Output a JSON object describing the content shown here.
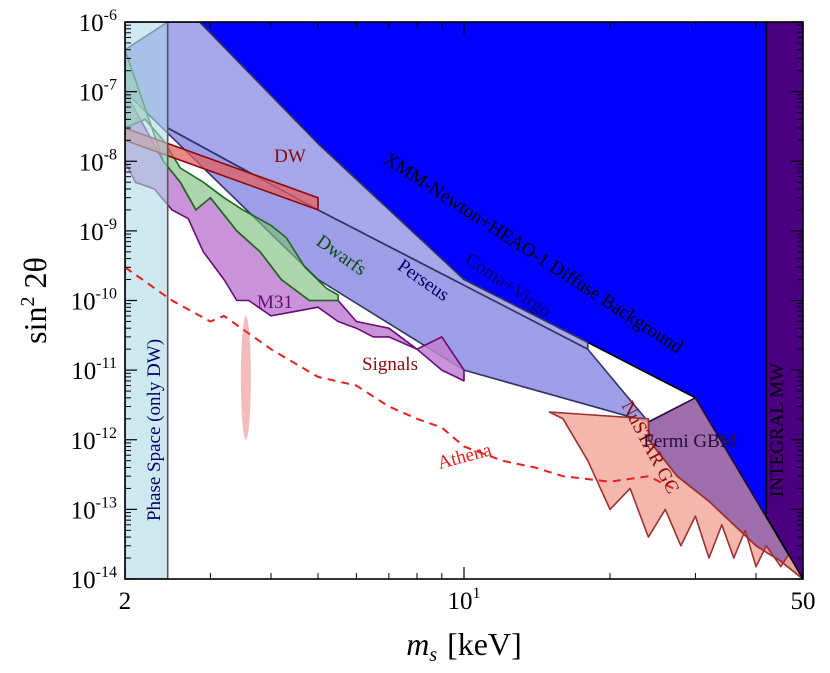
{
  "chart_data": {
    "type": "area",
    "title": "",
    "xlabel_symbol": "m",
    "xlabel_sub": "s",
    "xlabel_unit": "[keV]",
    "ylabel_text": "sin",
    "ylabel_sup": "2",
    "ylabel_rest": "2θ",
    "x_scale": "log",
    "y_scale": "log",
    "xlim": [
      2,
      50
    ],
    "ylim": [
      1e-14,
      1e-06
    ],
    "x_ticks": [
      {
        "value": 2,
        "base": "2",
        "sup": ""
      },
      {
        "value": 10,
        "base": "10",
        "sup": "1"
      },
      {
        "value": 50,
        "base": "50",
        "sup": ""
      }
    ],
    "y_ticks": [
      {
        "value": 1e-06,
        "base": "10",
        "sup": "-6"
      },
      {
        "value": 1e-07,
        "base": "10",
        "sup": "-7"
      },
      {
        "value": 1e-08,
        "base": "10",
        "sup": "-8"
      },
      {
        "value": 1e-09,
        "base": "10",
        "sup": "-9"
      },
      {
        "value": 1e-10,
        "base": "10",
        "sup": "-10"
      },
      {
        "value": 1e-11,
        "base": "10",
        "sup": "-11"
      },
      {
        "value": 1e-12,
        "base": "10",
        "sup": "-12"
      },
      {
        "value": 1e-13,
        "base": "10",
        "sup": "-13"
      },
      {
        "value": 1e-14,
        "base": "10",
        "sup": "-14"
      }
    ],
    "regions": [
      {
        "name": "XMM-Newton+HEAO-1 Diffuse Background",
        "fill": "#0000ff",
        "opacity": 1.0,
        "stroke": "#000000",
        "points": [
          [
            2.85,
            1e-06
          ],
          [
            42,
            1e-06
          ],
          [
            42,
            8e-14
          ],
          [
            50,
            1e-14
          ],
          [
            30,
            4e-12
          ],
          [
            18,
            2.5e-11
          ],
          [
            10,
            2e-10
          ],
          [
            5,
            1.8e-08
          ],
          [
            2.85,
            1e-06
          ]
        ]
      },
      {
        "name": "Coma+Virgo",
        "fill": "#6a6adc",
        "opacity": 0.6,
        "stroke": "#333366",
        "points": [
          [
            2.45,
            1e-06
          ],
          [
            2.85,
            1e-06
          ],
          [
            5,
            1.8e-08
          ],
          [
            10,
            2e-10
          ],
          [
            18,
            2.5e-11
          ],
          [
            18,
            2e-11
          ],
          [
            5,
            2e-09
          ],
          [
            2.45,
            3e-08
          ]
        ]
      },
      {
        "name": "Perseus",
        "fill": "#6a6adc",
        "opacity": 0.65,
        "stroke": "#333366",
        "points": [
          [
            2,
            4e-07
          ],
          [
            2.45,
            1e-06
          ],
          [
            2.45,
            3e-08
          ],
          [
            5,
            2e-09
          ],
          [
            18,
            2e-11
          ],
          [
            24,
            1.8e-12
          ],
          [
            10,
            1e-11
          ],
          [
            5,
            2e-10
          ],
          [
            2,
            1e-07
          ]
        ]
      },
      {
        "name": "Fermi GBM",
        "fill": "#7c3d8f",
        "opacity": 0.75,
        "stroke": "#2a0a3a",
        "points": [
          [
            24,
            1.8e-12
          ],
          [
            30,
            4e-12
          ],
          [
            50,
            1e-14
          ],
          [
            45,
            1.8e-14
          ],
          [
            40,
            3e-14
          ],
          [
            36,
            6e-14
          ],
          [
            32,
            1.3e-13
          ],
          [
            27.5,
            3e-13
          ],
          [
            24,
            1e-12
          ]
        ]
      },
      {
        "name": "NuSTAR GC",
        "fill": "#f2aaa0",
        "opacity": 0.85,
        "stroke": "#a03030",
        "points": [
          [
            15,
            2.5e-12
          ],
          [
            24,
            2e-12
          ],
          [
            24,
            1e-12
          ],
          [
            27.5,
            3e-13
          ],
          [
            32,
            1.3e-13
          ],
          [
            36,
            6e-14
          ],
          [
            40,
            3e-14
          ],
          [
            45,
            1.8e-14
          ],
          [
            50,
            1e-14
          ],
          [
            48,
            3e-14
          ],
          [
            45,
            1.5e-14
          ],
          [
            42,
            3e-14
          ],
          [
            40,
            1.5e-14
          ],
          [
            38,
            5e-14
          ],
          [
            36,
            2e-14
          ],
          [
            34,
            6e-14
          ],
          [
            32,
            2e-14
          ],
          [
            30,
            8e-14
          ],
          [
            28,
            3e-14
          ],
          [
            26,
            1e-13
          ],
          [
            24,
            4e-14
          ],
          [
            22,
            2e-13
          ],
          [
            20,
            1e-13
          ],
          [
            18,
            5e-13
          ],
          [
            16,
            2e-12
          ],
          [
            15,
            2.5e-12
          ]
        ]
      },
      {
        "name": "M31",
        "fill": "#c080d0",
        "opacity": 0.85,
        "stroke": "#6a0a7a",
        "points": [
          [
            2,
            1e-07
          ],
          [
            2.4,
            1e-08
          ],
          [
            2.6,
            5e-09
          ],
          [
            2.8,
            2e-09
          ],
          [
            3,
            3e-09
          ],
          [
            3.4,
            1e-09
          ],
          [
            3.8,
            5e-10
          ],
          [
            4.2,
            2e-10
          ],
          [
            4.8,
            1e-10
          ],
          [
            5.5,
            1e-10
          ],
          [
            6,
            5e-11
          ],
          [
            7,
            4e-11
          ],
          [
            8,
            2e-11
          ],
          [
            9,
            3e-11
          ],
          [
            10,
            1e-11
          ],
          [
            10,
            7e-12
          ],
          [
            9,
            1e-11
          ],
          [
            8,
            2e-11
          ],
          [
            7,
            3e-11
          ],
          [
            6.5,
            3e-11
          ],
          [
            6,
            4e-11
          ],
          [
            5.5,
            5e-11
          ],
          [
            5,
            8e-11
          ],
          [
            4.5,
            7e-11
          ],
          [
            4,
            6e-11
          ],
          [
            3.6,
            1e-10
          ],
          [
            3.4,
            1e-10
          ],
          [
            3.2,
            2e-10
          ],
          [
            2.9,
            5e-10
          ],
          [
            2.7,
            1.5e-09
          ],
          [
            2.5,
            2e-09
          ],
          [
            2.3,
            4e-09
          ],
          [
            2.1,
            5e-09
          ],
          [
            2,
            1e-08
          ]
        ]
      },
      {
        "name": "Dwarfs",
        "fill": "#7fbf7f",
        "opacity": 0.65,
        "stroke": "#1a6a1a",
        "points": [
          [
            2,
            4e-07
          ],
          [
            2.4,
            1e-08
          ],
          [
            2.6,
            5e-09
          ],
          [
            2.8,
            2e-09
          ],
          [
            3,
            3e-09
          ],
          [
            3.4,
            1e-09
          ],
          [
            3.8,
            5e-10
          ],
          [
            4.2,
            2e-10
          ],
          [
            4.8,
            1e-10
          ],
          [
            5.5,
            1e-10
          ],
          [
            5.5,
            1.2e-10
          ],
          [
            5.2,
            1.5e-10
          ],
          [
            4.7,
            3e-10
          ],
          [
            4.3,
            8e-10
          ],
          [
            4.0,
            1.2e-09
          ],
          [
            3.5,
            2e-09
          ],
          [
            3.2,
            3e-09
          ],
          [
            2.9,
            5e-09
          ],
          [
            2.6,
            8e-09
          ],
          [
            2.4,
            2e-08
          ],
          [
            2.2,
            4e-08
          ],
          [
            2,
            3e-08
          ]
        ]
      },
      {
        "name": "DW",
        "fill": "#e06060",
        "opacity": 0.75,
        "stroke": "#8a0a0a",
        "points": [
          [
            2,
            3e-08
          ],
          [
            5,
            3e-09
          ],
          [
            5,
            2e-09
          ],
          [
            2,
            2e-08
          ]
        ]
      },
      {
        "name": "Phase Space (only DW)",
        "fill": "#add8e6",
        "opacity": 0.6,
        "stroke": "#555555",
        "points": [
          [
            2,
            1e-14
          ],
          [
            2.45,
            1e-14
          ],
          [
            2.45,
            1e-06
          ],
          [
            2,
            1e-06
          ]
        ]
      },
      {
        "name": "INTEGRAL MW",
        "fill": "#4b0082",
        "opacity": 1.0,
        "stroke": "#000000",
        "points": [
          [
            42,
            1e-06
          ],
          [
            50,
            1e-06
          ],
          [
            50,
            1e-14
          ],
          [
            42,
            8e-14
          ]
        ]
      }
    ],
    "lines": [
      {
        "name": "Athena",
        "color": "#e62020",
        "dash": "8,6",
        "points": [
          [
            2,
            3e-10
          ],
          [
            2.5,
            1e-10
          ],
          [
            3,
            5e-11
          ],
          [
            3.2,
            6e-11
          ],
          [
            4,
            2e-11
          ],
          [
            5,
            8e-12
          ],
          [
            6,
            6e-12
          ],
          [
            7,
            3e-12
          ],
          [
            8,
            2e-12
          ],
          [
            9,
            1.5e-12
          ],
          [
            10,
            8e-13
          ],
          [
            12,
            5e-13
          ],
          [
            14,
            4e-13
          ],
          [
            16,
            3e-13
          ],
          [
            20,
            2.5e-13
          ],
          [
            24,
            3e-13
          ],
          [
            27,
            2e-13
          ]
        ]
      }
    ],
    "signals": [
      {
        "x": 3.55,
        "y_low": 1e-12,
        "y_high": 6e-11,
        "color": "#e04040",
        "name": "Signals"
      }
    ],
    "labels": [
      {
        "text": "XMM-Newton+HEAO-1 Diffuse Background",
        "color": "#000000",
        "rotate": 33.0
      },
      {
        "text": "INTEGRAL MW",
        "color": "#000000",
        "rotate": -90
      },
      {
        "text": "Coma+Virgo",
        "color": "#000066",
        "rotate": 34.0
      },
      {
        "text": "Perseus",
        "color": "#000066",
        "rotate": 35.0
      },
      {
        "text": "Dwarfs",
        "color": "#0a4a0a",
        "rotate": 35.0
      },
      {
        "text": "M31",
        "color": "#6a0a7a",
        "rotate": 0
      },
      {
        "text": "DW",
        "color": "#8a0a0a",
        "rotate": 0
      },
      {
        "text": "Signals",
        "color": "#8a0a0a",
        "rotate": 0
      },
      {
        "text": "Athena",
        "color": "#e62020",
        "rotate": -15
      },
      {
        "text": "NuSTAR GC",
        "color": "#8a0a0a",
        "rotate": 62
      },
      {
        "text": "Fermi GBM",
        "color": "#2a0a3a",
        "rotate": 0
      },
      {
        "text": "Phase Space (only DW)",
        "color": "#000066",
        "rotate": -90
      }
    ]
  }
}
